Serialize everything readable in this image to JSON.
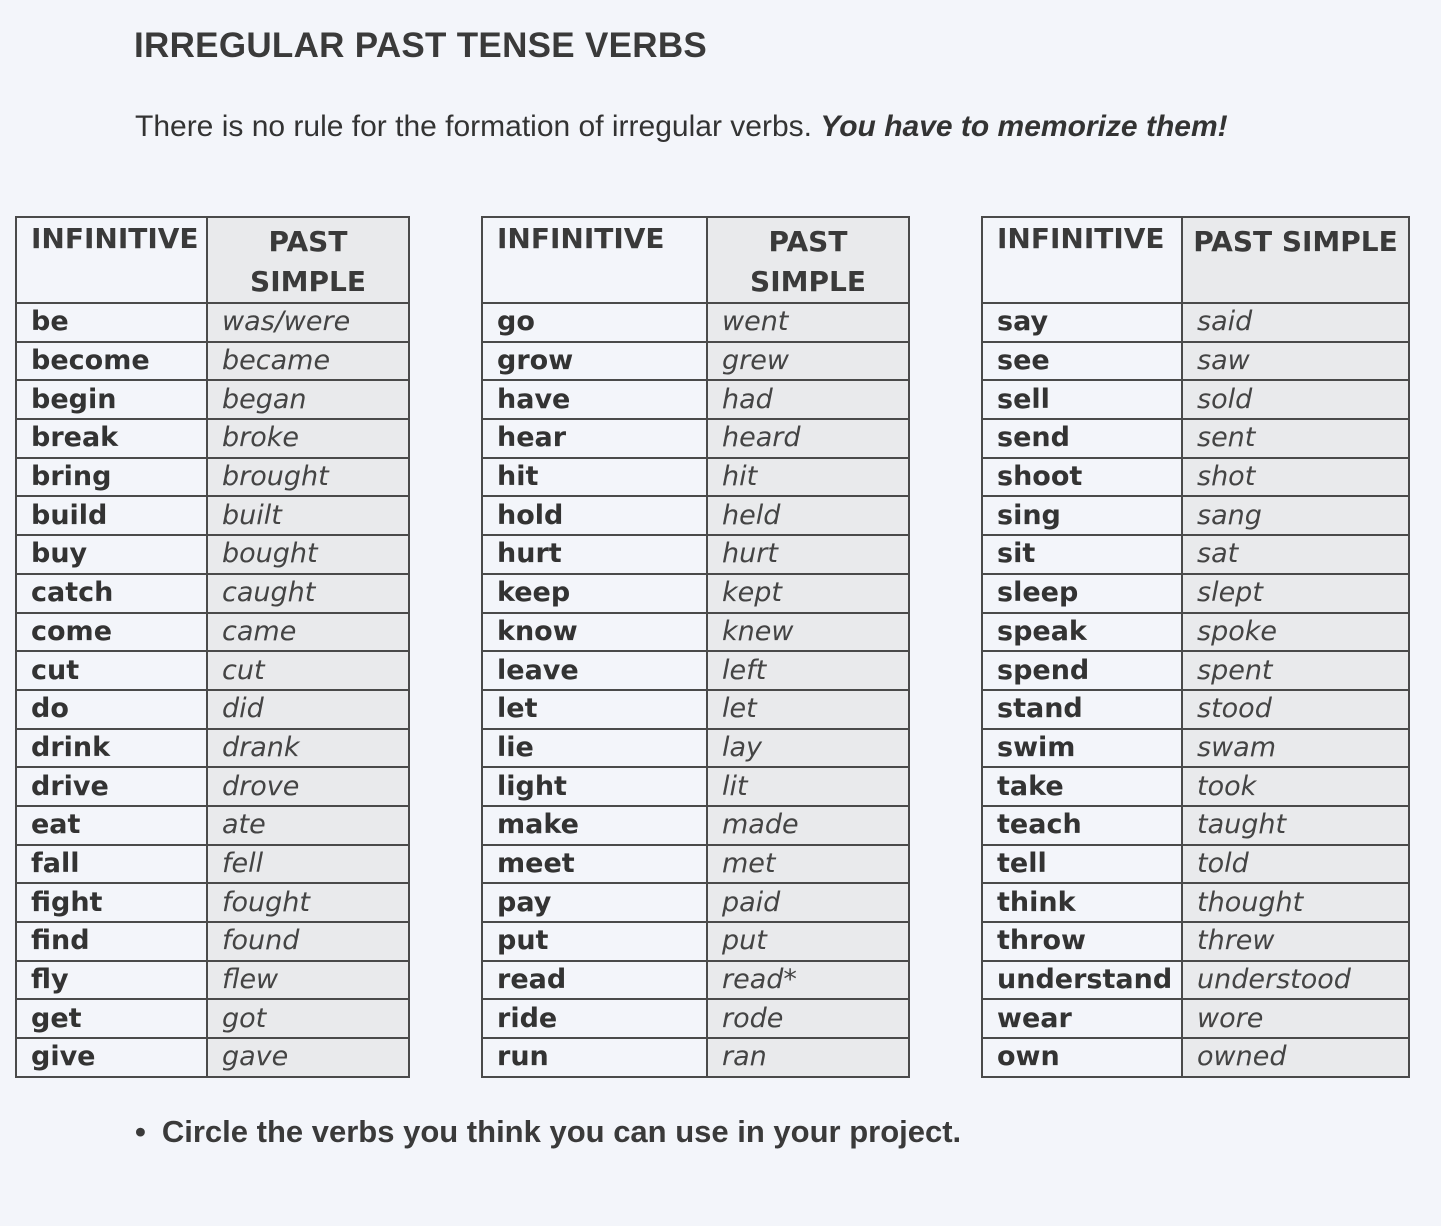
{
  "title": "IRREGULAR PAST TENSE VERBS",
  "intro": {
    "text": "There is no rule for the formation of irregular verbs.",
    "emphasis": "You have to memorize them!"
  },
  "headers": {
    "infinitive": "INFINITIVE",
    "past_simple": "PAST SIMPLE"
  },
  "tables": [
    {
      "rows": [
        [
          "be",
          "was/were"
        ],
        [
          "become",
          "became"
        ],
        [
          "begin",
          "began"
        ],
        [
          "break",
          "broke"
        ],
        [
          "bring",
          "brought"
        ],
        [
          "build",
          "built"
        ],
        [
          "buy",
          "bought"
        ],
        [
          "catch",
          "caught"
        ],
        [
          "come",
          "came"
        ],
        [
          "cut",
          "cut"
        ],
        [
          "do",
          "did"
        ],
        [
          "drink",
          "drank"
        ],
        [
          "drive",
          "drove"
        ],
        [
          "eat",
          "ate"
        ],
        [
          "fall",
          "fell"
        ],
        [
          "fight",
          "fought"
        ],
        [
          "find",
          "found"
        ],
        [
          "fly",
          "flew"
        ],
        [
          "get",
          "got"
        ],
        [
          "give",
          "gave"
        ]
      ]
    },
    {
      "rows": [
        [
          "go",
          "went"
        ],
        [
          "grow",
          "grew"
        ],
        [
          "have",
          "had"
        ],
        [
          "hear",
          "heard"
        ],
        [
          "hit",
          "hit"
        ],
        [
          "hold",
          "held"
        ],
        [
          "hurt",
          "hurt"
        ],
        [
          "keep",
          "kept"
        ],
        [
          "know",
          "knew"
        ],
        [
          "leave",
          "left"
        ],
        [
          "let",
          "let"
        ],
        [
          "lie",
          "lay"
        ],
        [
          "light",
          "lit"
        ],
        [
          "make",
          "made"
        ],
        [
          "meet",
          "met"
        ],
        [
          "pay",
          "paid"
        ],
        [
          "put",
          "put"
        ],
        [
          "read",
          "read*"
        ],
        [
          "ride",
          "rode"
        ],
        [
          "run",
          "ran"
        ]
      ]
    },
    {
      "rows": [
        [
          "say",
          "said"
        ],
        [
          "see",
          "saw"
        ],
        [
          "sell",
          "sold"
        ],
        [
          "send",
          "sent"
        ],
        [
          "shoot",
          "shot"
        ],
        [
          "sing",
          "sang"
        ],
        [
          "sit",
          "sat"
        ],
        [
          "sleep",
          "slept"
        ],
        [
          "speak",
          "spoke"
        ],
        [
          "spend",
          "spent"
        ],
        [
          "stand",
          "stood"
        ],
        [
          "swim",
          "swam"
        ],
        [
          "take",
          "took"
        ],
        [
          "teach",
          "taught"
        ],
        [
          "tell",
          "told"
        ],
        [
          "think",
          "thought"
        ],
        [
          "throw",
          "threw"
        ],
        [
          "understand",
          "understood"
        ],
        [
          "wear",
          "wore"
        ],
        [
          "own",
          "owned"
        ]
      ]
    }
  ],
  "instruction": {
    "bullet": "•",
    "text": "Circle the verbs you think you can use in your project."
  }
}
